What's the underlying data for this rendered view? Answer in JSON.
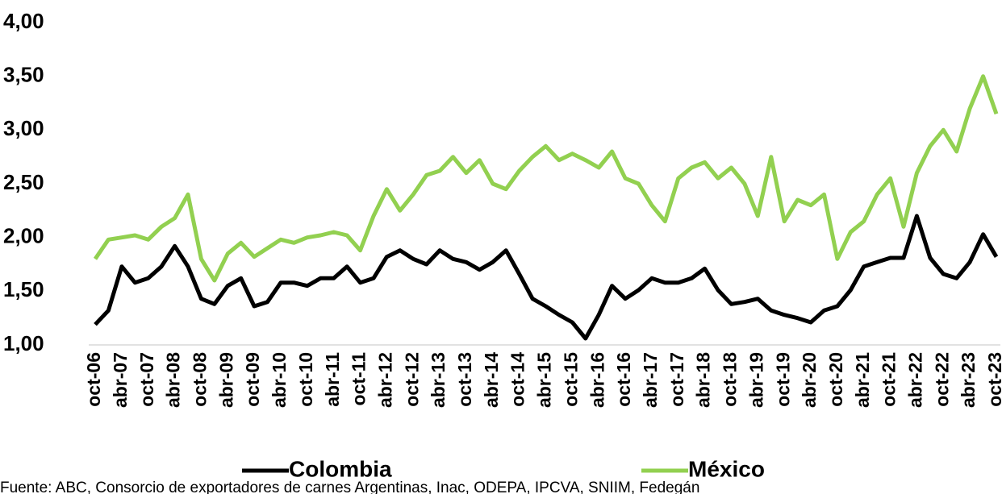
{
  "chart_data": {
    "type": "line",
    "categories": [
      "oct-06",
      null,
      "abr-07",
      null,
      "oct-07",
      null,
      "abr-08",
      null,
      "oct-08",
      null,
      "abr-09",
      null,
      "oct-09",
      null,
      "abr-10",
      null,
      "oct-10",
      null,
      "abr-11",
      null,
      "oct-11",
      null,
      "abr-12",
      null,
      "oct-12",
      null,
      "abr-13",
      null,
      "oct-13",
      null,
      "abr-14",
      null,
      "oct-14",
      null,
      "abr-15",
      null,
      "oct-15",
      null,
      "abr-16",
      null,
      "oct-16",
      null,
      "abr-17",
      null,
      "oct-17",
      null,
      "abr-18",
      null,
      "oct-18",
      null,
      "abr-19",
      null,
      "oct-19",
      null,
      "abr-20",
      null,
      "oct-20",
      null,
      "abr-21",
      null,
      "oct-21",
      null,
      "abr-22",
      null,
      "oct-22",
      null,
      "abr-23",
      null,
      "oct-23"
    ],
    "series": [
      {
        "name": "Colombia",
        "color": "#000000",
        "values": [
          1.19,
          1.32,
          1.73,
          1.58,
          1.62,
          1.73,
          1.92,
          1.73,
          1.43,
          1.38,
          1.55,
          1.62,
          1.36,
          1.4,
          1.58,
          1.58,
          1.55,
          1.62,
          1.62,
          1.73,
          1.58,
          1.62,
          1.82,
          1.88,
          1.8,
          1.75,
          1.88,
          1.8,
          1.77,
          1.7,
          1.77,
          1.88,
          1.66,
          1.43,
          1.36,
          1.28,
          1.21,
          1.06,
          1.28,
          1.55,
          1.43,
          1.51,
          1.62,
          1.58,
          1.58,
          1.62,
          1.71,
          1.51,
          1.38,
          1.4,
          1.43,
          1.32,
          1.28,
          1.25,
          1.21,
          1.32,
          1.36,
          1.51,
          1.73,
          1.77,
          1.81,
          1.81,
          2.2,
          1.81,
          1.66,
          1.62,
          1.77,
          2.03,
          1.82
        ]
      },
      {
        "name": "México",
        "color": "#92d050",
        "values": [
          1.8,
          1.98,
          2.0,
          2.02,
          1.98,
          2.1,
          2.18,
          2.4,
          1.8,
          1.6,
          1.85,
          1.95,
          1.82,
          1.9,
          1.98,
          1.95,
          2.0,
          2.02,
          2.05,
          2.02,
          1.88,
          2.2,
          2.45,
          2.25,
          2.4,
          2.58,
          2.62,
          2.75,
          2.6,
          2.72,
          2.5,
          2.45,
          2.62,
          2.75,
          2.85,
          2.72,
          2.78,
          2.72,
          2.65,
          2.8,
          2.55,
          2.5,
          2.3,
          2.15,
          2.55,
          2.65,
          2.7,
          2.55,
          2.65,
          2.5,
          2.2,
          2.75,
          2.15,
          2.35,
          2.3,
          2.4,
          1.8,
          2.05,
          2.15,
          2.4,
          2.55,
          2.1,
          2.6,
          2.85,
          3.0,
          2.8,
          3.2,
          3.5,
          3.15
        ]
      }
    ],
    "ylim": [
      1,
      4
    ],
    "yticks": [
      {
        "value": 1,
        "label": "1,00"
      },
      {
        "value": 1.5,
        "label": "1,50"
      },
      {
        "value": 2,
        "label": "2,00"
      },
      {
        "value": 2.5,
        "label": "2,50"
      },
      {
        "value": 3,
        "label": "3,00"
      },
      {
        "value": 3.5,
        "label": "3,50"
      },
      {
        "value": 4,
        "label": "4,00"
      }
    ],
    "grid": false,
    "legend": "bottom",
    "source": "Fuente: ABC, Consorcio de exportadores de carnes Argentinas, Inac, ODEPA, IPCVA, SNIIM, Fedegán"
  }
}
